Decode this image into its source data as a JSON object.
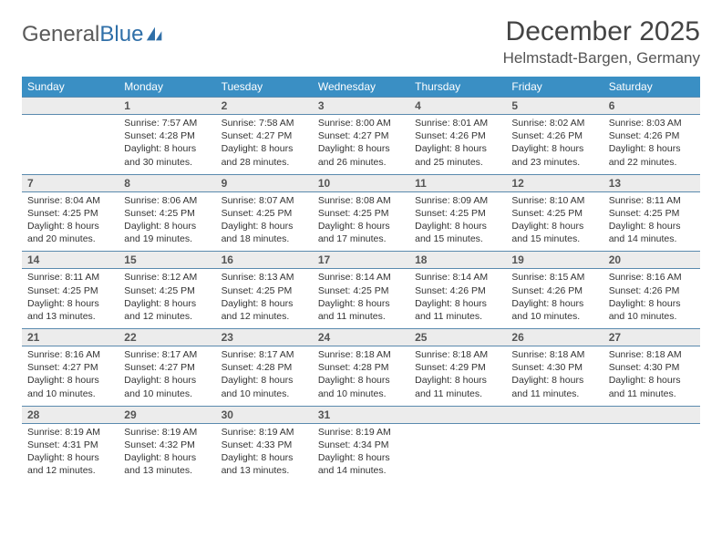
{
  "brand": {
    "name_gray": "General",
    "name_blue": "Blue"
  },
  "title": "December 2025",
  "location": "Helmstadt-Bargen, Germany",
  "weekdays": [
    "Sunday",
    "Monday",
    "Tuesday",
    "Wednesday",
    "Thursday",
    "Friday",
    "Saturday"
  ],
  "colors": {
    "header_bg": "#3a8fc4",
    "header_text": "#ffffff",
    "daynum_bg": "#ececec",
    "border": "#5a8aae",
    "logo_blue": "#2f6fa8",
    "logo_gray": "#5a5a5a"
  },
  "weeks": [
    [
      {
        "num": "",
        "sunrise": "",
        "sunset": "",
        "daylight": ""
      },
      {
        "num": "1",
        "sunrise": "Sunrise: 7:57 AM",
        "sunset": "Sunset: 4:28 PM",
        "daylight": "Daylight: 8 hours and 30 minutes."
      },
      {
        "num": "2",
        "sunrise": "Sunrise: 7:58 AM",
        "sunset": "Sunset: 4:27 PM",
        "daylight": "Daylight: 8 hours and 28 minutes."
      },
      {
        "num": "3",
        "sunrise": "Sunrise: 8:00 AM",
        "sunset": "Sunset: 4:27 PM",
        "daylight": "Daylight: 8 hours and 26 minutes."
      },
      {
        "num": "4",
        "sunrise": "Sunrise: 8:01 AM",
        "sunset": "Sunset: 4:26 PM",
        "daylight": "Daylight: 8 hours and 25 minutes."
      },
      {
        "num": "5",
        "sunrise": "Sunrise: 8:02 AM",
        "sunset": "Sunset: 4:26 PM",
        "daylight": "Daylight: 8 hours and 23 minutes."
      },
      {
        "num": "6",
        "sunrise": "Sunrise: 8:03 AM",
        "sunset": "Sunset: 4:26 PM",
        "daylight": "Daylight: 8 hours and 22 minutes."
      }
    ],
    [
      {
        "num": "7",
        "sunrise": "Sunrise: 8:04 AM",
        "sunset": "Sunset: 4:25 PM",
        "daylight": "Daylight: 8 hours and 20 minutes."
      },
      {
        "num": "8",
        "sunrise": "Sunrise: 8:06 AM",
        "sunset": "Sunset: 4:25 PM",
        "daylight": "Daylight: 8 hours and 19 minutes."
      },
      {
        "num": "9",
        "sunrise": "Sunrise: 8:07 AM",
        "sunset": "Sunset: 4:25 PM",
        "daylight": "Daylight: 8 hours and 18 minutes."
      },
      {
        "num": "10",
        "sunrise": "Sunrise: 8:08 AM",
        "sunset": "Sunset: 4:25 PM",
        "daylight": "Daylight: 8 hours and 17 minutes."
      },
      {
        "num": "11",
        "sunrise": "Sunrise: 8:09 AM",
        "sunset": "Sunset: 4:25 PM",
        "daylight": "Daylight: 8 hours and 15 minutes."
      },
      {
        "num": "12",
        "sunrise": "Sunrise: 8:10 AM",
        "sunset": "Sunset: 4:25 PM",
        "daylight": "Daylight: 8 hours and 15 minutes."
      },
      {
        "num": "13",
        "sunrise": "Sunrise: 8:11 AM",
        "sunset": "Sunset: 4:25 PM",
        "daylight": "Daylight: 8 hours and 14 minutes."
      }
    ],
    [
      {
        "num": "14",
        "sunrise": "Sunrise: 8:11 AM",
        "sunset": "Sunset: 4:25 PM",
        "daylight": "Daylight: 8 hours and 13 minutes."
      },
      {
        "num": "15",
        "sunrise": "Sunrise: 8:12 AM",
        "sunset": "Sunset: 4:25 PM",
        "daylight": "Daylight: 8 hours and 12 minutes."
      },
      {
        "num": "16",
        "sunrise": "Sunrise: 8:13 AM",
        "sunset": "Sunset: 4:25 PM",
        "daylight": "Daylight: 8 hours and 12 minutes."
      },
      {
        "num": "17",
        "sunrise": "Sunrise: 8:14 AM",
        "sunset": "Sunset: 4:25 PM",
        "daylight": "Daylight: 8 hours and 11 minutes."
      },
      {
        "num": "18",
        "sunrise": "Sunrise: 8:14 AM",
        "sunset": "Sunset: 4:26 PM",
        "daylight": "Daylight: 8 hours and 11 minutes."
      },
      {
        "num": "19",
        "sunrise": "Sunrise: 8:15 AM",
        "sunset": "Sunset: 4:26 PM",
        "daylight": "Daylight: 8 hours and 10 minutes."
      },
      {
        "num": "20",
        "sunrise": "Sunrise: 8:16 AM",
        "sunset": "Sunset: 4:26 PM",
        "daylight": "Daylight: 8 hours and 10 minutes."
      }
    ],
    [
      {
        "num": "21",
        "sunrise": "Sunrise: 8:16 AM",
        "sunset": "Sunset: 4:27 PM",
        "daylight": "Daylight: 8 hours and 10 minutes."
      },
      {
        "num": "22",
        "sunrise": "Sunrise: 8:17 AM",
        "sunset": "Sunset: 4:27 PM",
        "daylight": "Daylight: 8 hours and 10 minutes."
      },
      {
        "num": "23",
        "sunrise": "Sunrise: 8:17 AM",
        "sunset": "Sunset: 4:28 PM",
        "daylight": "Daylight: 8 hours and 10 minutes."
      },
      {
        "num": "24",
        "sunrise": "Sunrise: 8:18 AM",
        "sunset": "Sunset: 4:28 PM",
        "daylight": "Daylight: 8 hours and 10 minutes."
      },
      {
        "num": "25",
        "sunrise": "Sunrise: 8:18 AM",
        "sunset": "Sunset: 4:29 PM",
        "daylight": "Daylight: 8 hours and 11 minutes."
      },
      {
        "num": "26",
        "sunrise": "Sunrise: 8:18 AM",
        "sunset": "Sunset: 4:30 PM",
        "daylight": "Daylight: 8 hours and 11 minutes."
      },
      {
        "num": "27",
        "sunrise": "Sunrise: 8:18 AM",
        "sunset": "Sunset: 4:30 PM",
        "daylight": "Daylight: 8 hours and 11 minutes."
      }
    ],
    [
      {
        "num": "28",
        "sunrise": "Sunrise: 8:19 AM",
        "sunset": "Sunset: 4:31 PM",
        "daylight": "Daylight: 8 hours and 12 minutes."
      },
      {
        "num": "29",
        "sunrise": "Sunrise: 8:19 AM",
        "sunset": "Sunset: 4:32 PM",
        "daylight": "Daylight: 8 hours and 13 minutes."
      },
      {
        "num": "30",
        "sunrise": "Sunrise: 8:19 AM",
        "sunset": "Sunset: 4:33 PM",
        "daylight": "Daylight: 8 hours and 13 minutes."
      },
      {
        "num": "31",
        "sunrise": "Sunrise: 8:19 AM",
        "sunset": "Sunset: 4:34 PM",
        "daylight": "Daylight: 8 hours and 14 minutes."
      },
      {
        "num": "",
        "sunrise": "",
        "sunset": "",
        "daylight": ""
      },
      {
        "num": "",
        "sunrise": "",
        "sunset": "",
        "daylight": ""
      },
      {
        "num": "",
        "sunrise": "",
        "sunset": "",
        "daylight": ""
      }
    ]
  ]
}
